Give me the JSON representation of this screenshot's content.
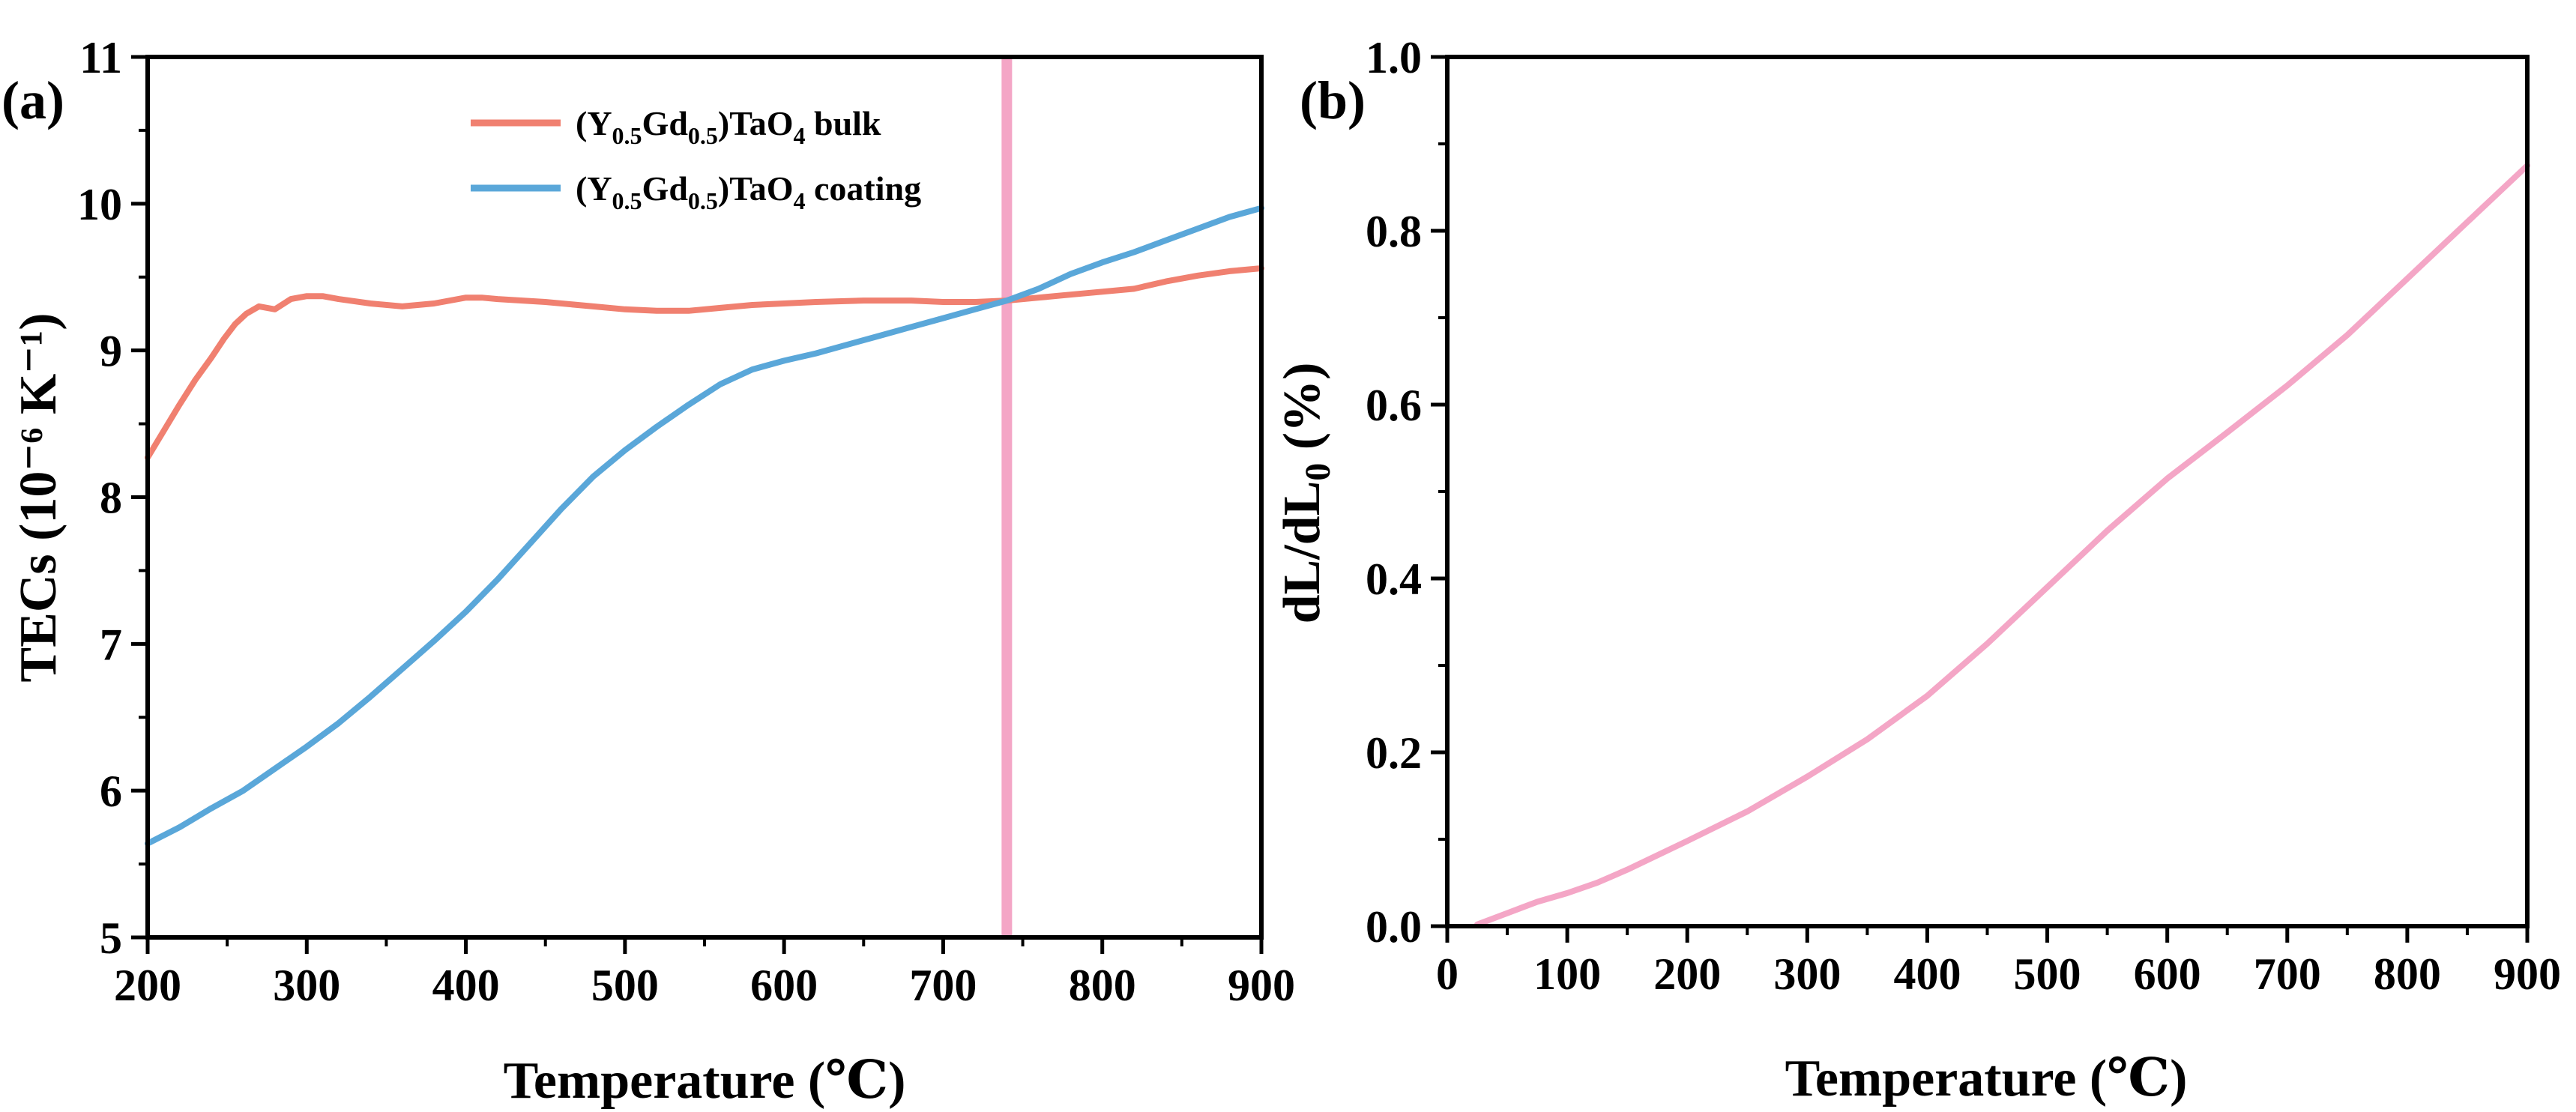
{
  "chart_data": [
    {
      "panel_label": "(a)",
      "type": "line",
      "xlabel": "Temperature (℃)",
      "ylabel": "TECs (10⁻⁶ K⁻¹)",
      "xlim": [
        200,
        900
      ],
      "ylim": [
        5,
        11
      ],
      "xticks": [
        "200",
        "300",
        "400",
        "500",
        "600",
        "700",
        "800",
        "900"
      ],
      "yticks": [
        "5",
        "6",
        "7",
        "8",
        "9",
        "10",
        "11"
      ],
      "vline": {
        "x": 740,
        "color": "#F4A6C6"
      },
      "legend_position": "top-center",
      "series": [
        {
          "name": "(Y0.5Gd0.5)TaO4 bulk",
          "legend": {
            "open": "(Y",
            "sub1": "0.5",
            "mid": "Gd",
            "sub2": "0.5",
            "close": ")TaO",
            "sub3": "4",
            "tail": " bulk"
          },
          "color": "#F08070",
          "x": [
            200,
            210,
            220,
            230,
            240,
            248,
            255,
            262,
            270,
            280,
            290,
            300,
            310,
            320,
            340,
            360,
            380,
            400,
            410,
            420,
            450,
            480,
            500,
            520,
            540,
            560,
            580,
            600,
            620,
            650,
            680,
            700,
            720,
            740,
            760,
            780,
            800,
            820,
            840,
            860,
            880,
            900
          ],
          "y": [
            8.27,
            8.45,
            8.63,
            8.8,
            8.95,
            9.08,
            9.18,
            9.25,
            9.3,
            9.28,
            9.35,
            9.37,
            9.37,
            9.35,
            9.32,
            9.3,
            9.32,
            9.36,
            9.36,
            9.35,
            9.33,
            9.3,
            9.28,
            9.27,
            9.27,
            9.29,
            9.31,
            9.32,
            9.33,
            9.34,
            9.34,
            9.33,
            9.33,
            9.34,
            9.36,
            9.38,
            9.4,
            9.42,
            9.47,
            9.51,
            9.54,
            9.56
          ]
        },
        {
          "name": "(Y0.5Gd0.5)TaO4 coating",
          "legend": {
            "open": "(Y",
            "sub1": "0.5",
            "mid": "Gd",
            "sub2": "0.5",
            "close": ")TaO",
            "sub3": "4",
            "tail": " coating"
          },
          "color": "#5AA7D9",
          "x": [
            200,
            220,
            240,
            260,
            280,
            300,
            320,
            340,
            360,
            380,
            400,
            420,
            440,
            460,
            480,
            500,
            520,
            540,
            560,
            580,
            600,
            620,
            640,
            660,
            680,
            700,
            720,
            740,
            760,
            780,
            800,
            820,
            840,
            860,
            880,
            900
          ],
          "y": [
            5.64,
            5.75,
            5.88,
            6.0,
            6.15,
            6.3,
            6.46,
            6.64,
            6.83,
            7.02,
            7.22,
            7.44,
            7.68,
            7.92,
            8.14,
            8.32,
            8.48,
            8.63,
            8.77,
            8.87,
            8.93,
            8.98,
            9.04,
            9.1,
            9.16,
            9.22,
            9.28,
            9.34,
            9.42,
            9.52,
            9.6,
            9.67,
            9.75,
            9.83,
            9.91,
            9.97
          ]
        }
      ]
    },
    {
      "panel_label": "(b)",
      "type": "line",
      "xlabel": "Temperature (℃)",
      "ylabel": {
        "main": "dL/dL",
        "sub": "0",
        "tail": " (%)"
      },
      "xlim": [
        0,
        900
      ],
      "ylim": [
        0.0,
        1.0
      ],
      "xticks": [
        "0",
        "100",
        "200",
        "300",
        "400",
        "500",
        "600",
        "700",
        "800",
        "900"
      ],
      "yticks": [
        "0.0",
        "0.2",
        "0.4",
        "0.6",
        "0.8",
        "1.0"
      ],
      "series": [
        {
          "name": "dL/dL0",
          "color": "#F4A6C6",
          "x": [
            25,
            50,
            75,
            100,
            125,
            150,
            200,
            250,
            300,
            350,
            400,
            450,
            500,
            550,
            600,
            650,
            700,
            750,
            800,
            850,
            900
          ],
          "y": [
            0.002,
            0.015,
            0.028,
            0.038,
            0.05,
            0.065,
            0.098,
            0.132,
            0.172,
            0.215,
            0.265,
            0.325,
            0.39,
            0.455,
            0.515,
            0.568,
            0.622,
            0.68,
            0.745,
            0.81,
            0.875
          ]
        }
      ]
    }
  ]
}
